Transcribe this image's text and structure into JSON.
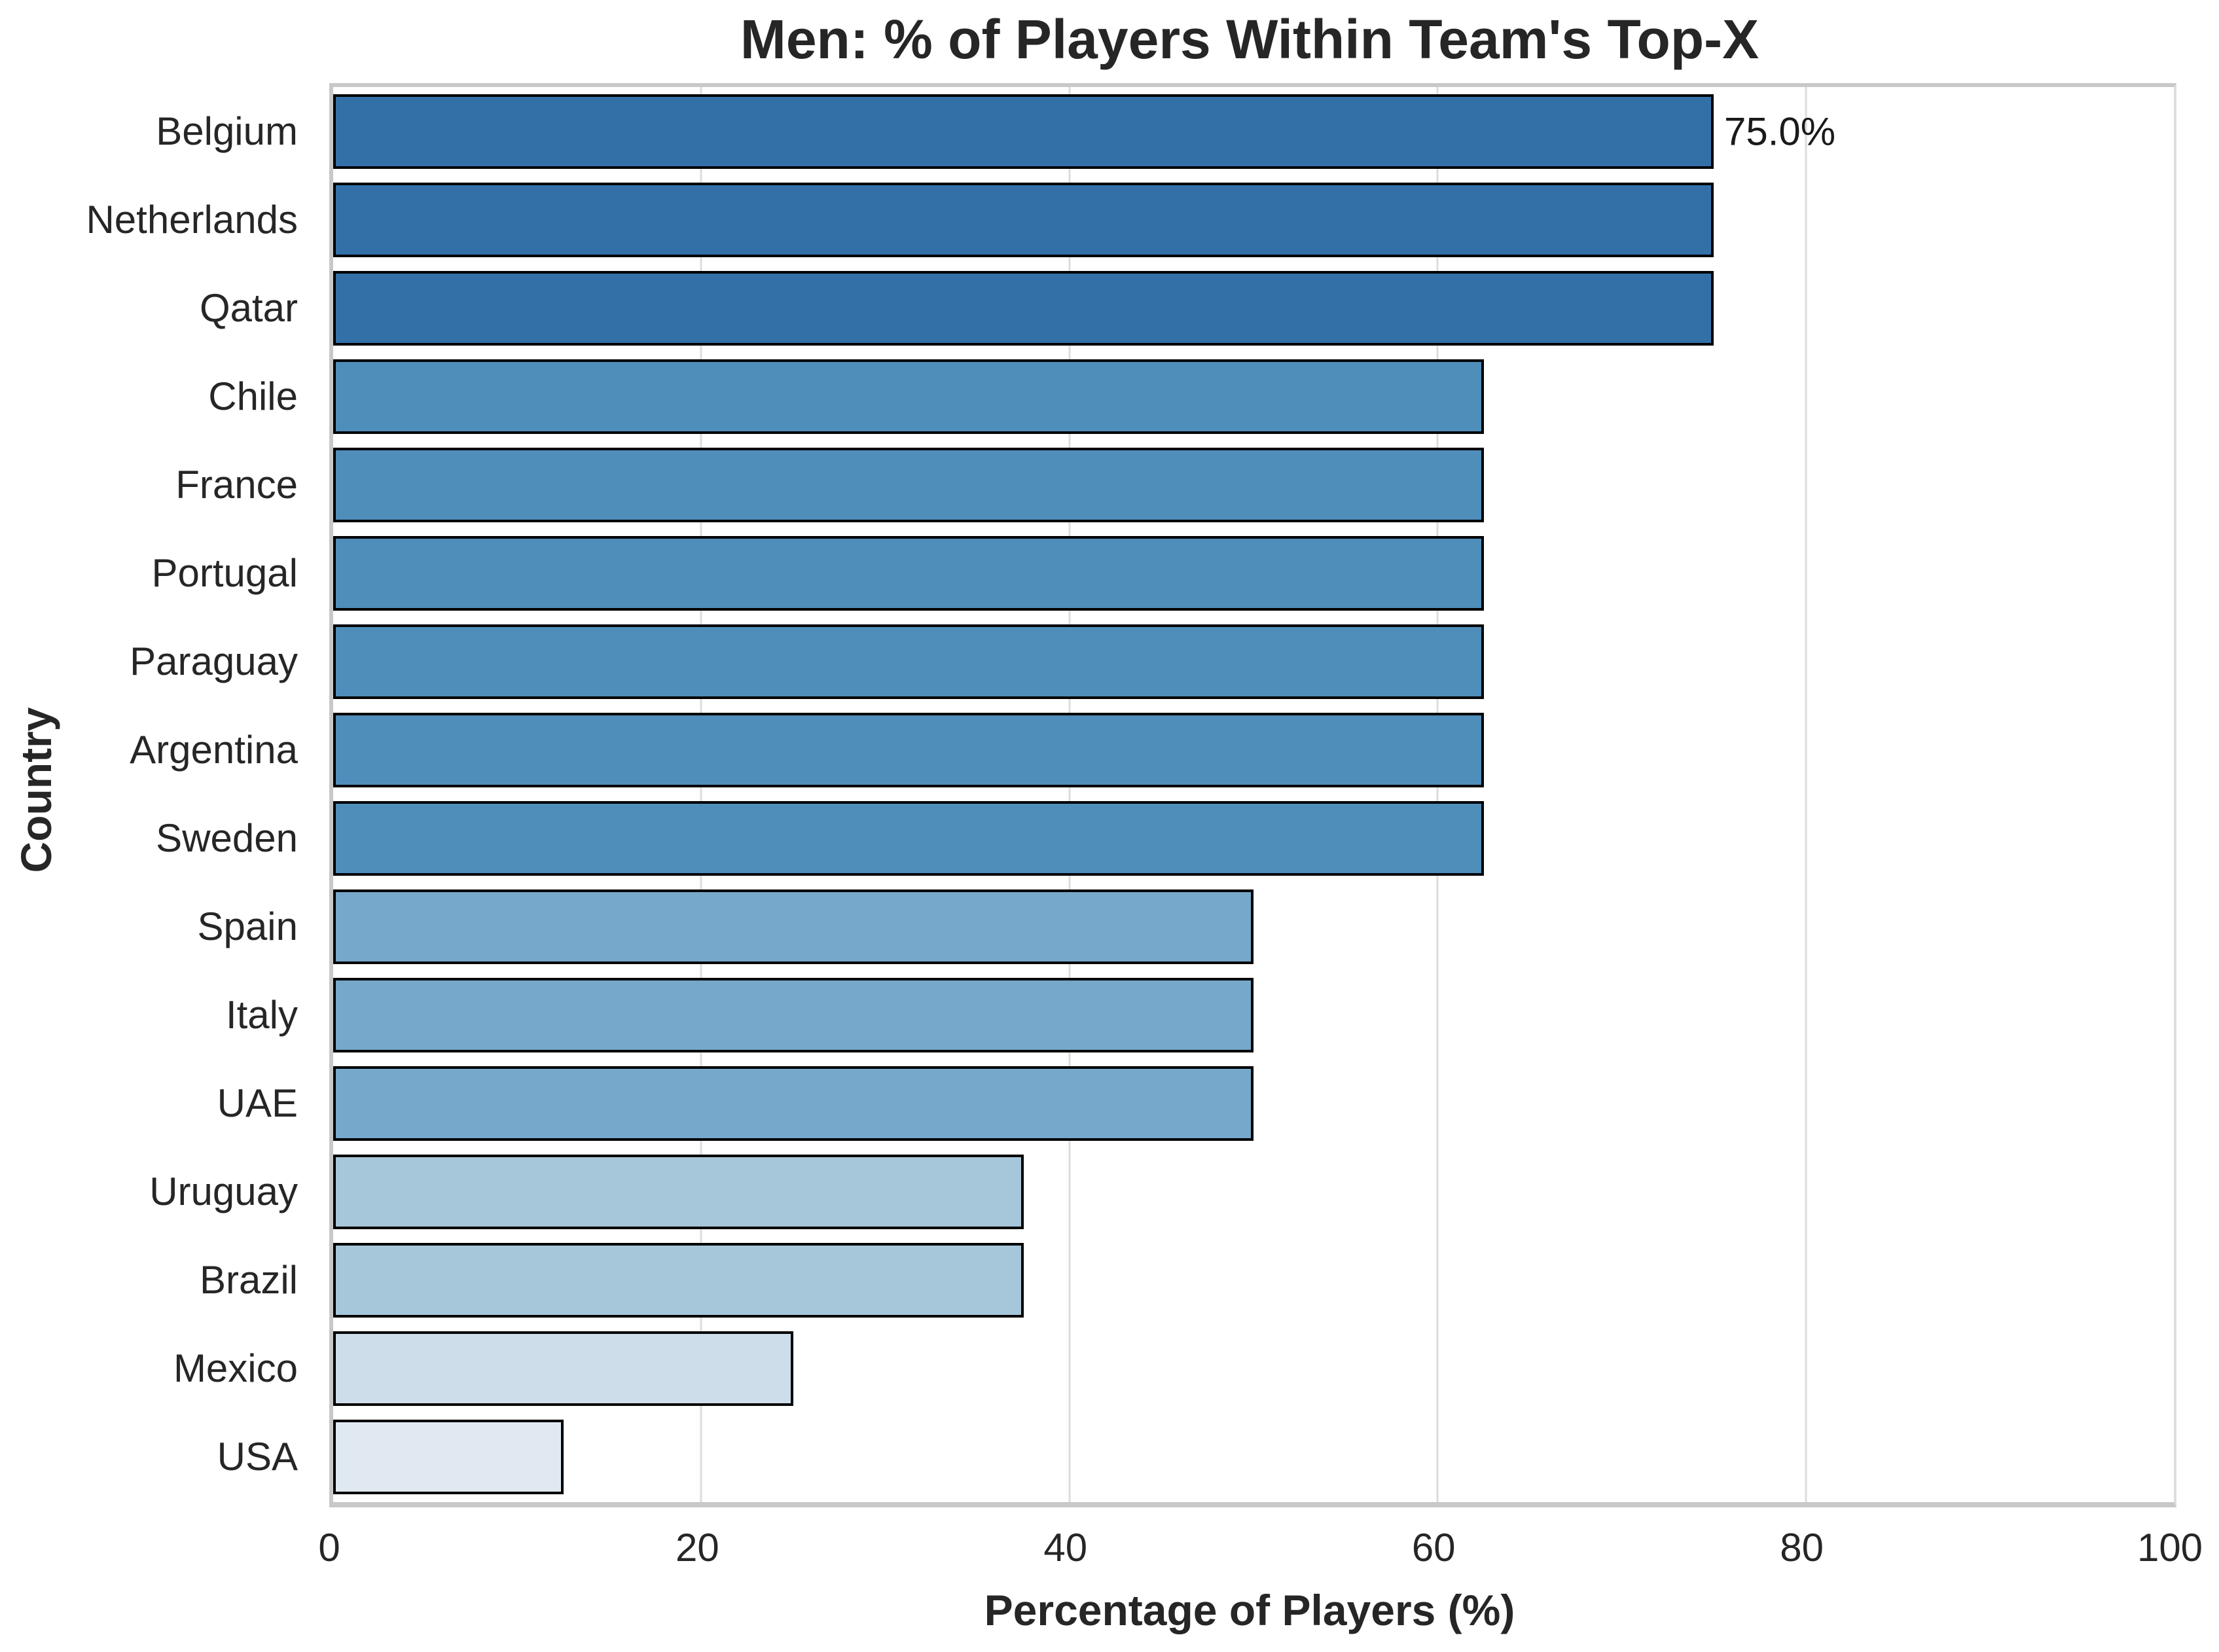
{
  "chart_data": {
    "type": "bar",
    "orientation": "horizontal",
    "title": "Men: % of Players Within Team's Top-X",
    "xlabel": "Percentage of Players (%)",
    "ylabel": "Country",
    "categories": [
      "Belgium",
      "Netherlands",
      "Qatar",
      "Chile",
      "France",
      "Portugal",
      "Paraguay",
      "Argentina",
      "Sweden",
      "Spain",
      "Italy",
      "UAE",
      "Uruguay",
      "Brazil",
      "Mexico",
      "USA"
    ],
    "values": [
      75.0,
      75.0,
      75.0,
      62.5,
      62.5,
      62.5,
      62.5,
      62.5,
      62.5,
      50.0,
      50.0,
      50.0,
      37.5,
      37.5,
      25.0,
      12.5
    ],
    "bar_colors": [
      "#3470a8",
      "#3470a8",
      "#3470a8",
      "#4f8dba",
      "#4f8dba",
      "#4f8dba",
      "#4f8dba",
      "#4f8dba",
      "#4f8dba",
      "#75a8cb",
      "#75a8cb",
      "#75a8cb",
      "#a6c7da",
      "#a6c7da",
      "#cdddea",
      "#e0e9f2"
    ],
    "bar_edge_color": "#000000",
    "xlim": [
      0,
      100
    ],
    "x_ticks": [
      0,
      20,
      40,
      60,
      80,
      100
    ],
    "grid": "vertical",
    "legend": "none",
    "annotations": [
      {
        "category": "Belgium",
        "text": "75.0%"
      }
    ]
  },
  "style": {
    "background": "#ffffff",
    "text_color": "#262626",
    "spine_color": "#c8c8c8",
    "grid_color": "#dcdcdc"
  }
}
